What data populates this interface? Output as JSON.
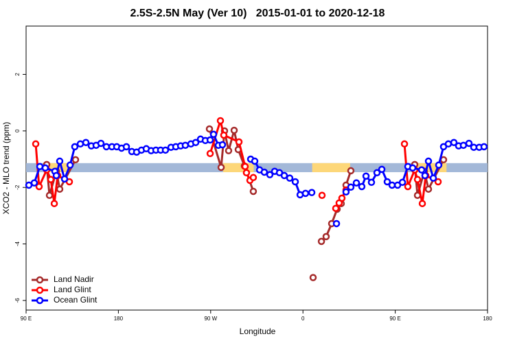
{
  "chart_data": {
    "type": "line",
    "title": "2.5S-2.5N May (Ver 10)   2015-01-01 to 2020-12-18",
    "xlabel": "Longitude",
    "ylabel": "XCO2 - MLO trend (ppm)",
    "xlim": [
      90,
      540
    ],
    "xticks": [
      {
        "value": 90,
        "label": "90 E"
      },
      {
        "value": 180,
        "label": "180"
      },
      {
        "value": 270,
        "label": "90 W"
      },
      {
        "value": 360,
        "label": "0"
      },
      {
        "value": 450,
        "label": "90 E"
      },
      {
        "value": 540,
        "label": "180"
      }
    ],
    "ylim": [
      -6.34,
      3.71
    ],
    "yticks": [
      -6,
      -4,
      -2,
      0,
      2
    ],
    "legend": "bottomleft",
    "bands": {
      "y": [
        -1.46,
        -1.14
      ],
      "color": "#a3b8d8",
      "highlight_color": "#fdd779",
      "highlights": [
        [
          108,
          131.5
        ],
        [
          282,
          312
        ],
        [
          369,
          406
        ],
        [
          466,
          500
        ]
      ]
    },
    "series": [
      {
        "name": "Land Nadir",
        "color": "#a52a2a",
        "x": [
          110.1,
          112.8,
          119.5,
          122.8,
          138.2,
          null,
          268.8,
          280.2,
          283.5,
          287.5,
          292.9,
          296.9,
          302.9,
          311.6,
          null,
          369.9,
          null,
          378.0,
          382.6,
          388.0,
          393.3,
          397.3,
          402.0,
          406.7,
          null,
          469.0,
          471.7,
          478.4,
          482.4,
          497.1
        ],
        "values": [
          -1.19,
          -2.28,
          -1.43,
          -2.06,
          -1.02,
          null,
          0.07,
          -1.29,
          0.0,
          -0.7,
          0.02,
          -0.66,
          -1.24,
          -2.14,
          null,
          -5.19,
          null,
          -3.91,
          -3.74,
          -3.28,
          -2.77,
          -2.57,
          -1.92,
          -1.41,
          null,
          -1.19,
          -2.28,
          -1.43,
          -2.06,
          -1.02
        ]
      },
      {
        "name": "Land Glint",
        "color": "#ff0000",
        "x": [
          99.4,
          102.7,
          110.1,
          114.1,
          117.5,
          120.8,
          132.2,
          null,
          269.5,
          279.5,
          282.8,
          297.6,
          303.6,
          304.9,
          308.3,
          311.6,
          null,
          378.6,
          null,
          392.0,
          395.3,
          398.0,
          402.0,
          null,
          459.0,
          462.3,
          469.0,
          471.7,
          476.4,
          479.8,
          491.8
        ],
        "values": [
          -0.46,
          -1.97,
          -1.38,
          -1.72,
          -2.57,
          -1.58,
          -1.8,
          null,
          -0.8,
          0.36,
          -0.15,
          -0.39,
          -1.26,
          -1.48,
          -1.75,
          -1.65,
          null,
          -2.28,
          null,
          -2.74,
          -2.55,
          -2.38,
          -2.09,
          null,
          -0.46,
          -1.97,
          -1.38,
          -1.72,
          -2.57,
          -1.58,
          -1.8
        ]
      },
      {
        "name": "Ocean Glint",
        "color": "#0000ff",
        "x": [
          92.7,
          98.0,
          103.4,
          108.7,
          118.1,
          119.5,
          122.8,
          127.5,
          132.9,
          137.5,
          142.9,
          148.3,
          153.6,
          158.3,
          163.0,
          168.3,
          173.7,
          178.4,
          183.1,
          187.8,
          193.1,
          197.8,
          202.5,
          207.2,
          211.9,
          216.6,
          221.2,
          225.9,
          231.3,
          236.0,
          240.7,
          245.3,
          250.7,
          255.4,
          260.1,
          264.8,
          269.5,
          272.8,
          277.5,
          281.5,
          null,
          309.0,
          313.0,
          317.7,
          322.3,
          327.7,
          332.4,
          337.1,
          341.8,
          347.1,
          352.5,
          357.2,
          362.5,
          368.6,
          null,
          392.7,
          null,
          402.0,
          406.7,
          412.1,
          417.4,
          421.5,
          426.8,
          432.2,
          436.9,
          442.2,
          446.9,
          452.3,
          457.0,
          462.3,
          467.0,
          475.7,
          479.0,
          482.4,
          487.1,
          492.4,
          497.1,
          501.8,
          507.2,
          511.8,
          516.5,
          521.9,
          526.6,
          531.9,
          536.6
        ],
        "values": [
          -1.92,
          -1.84,
          -1.26,
          -1.31,
          -1.43,
          -1.58,
          -1.07,
          -1.7,
          -1.21,
          -0.56,
          -0.46,
          -0.41,
          -0.53,
          -0.51,
          -0.44,
          -0.56,
          -0.56,
          -0.56,
          -0.61,
          -0.56,
          -0.73,
          -0.75,
          -0.68,
          -0.63,
          -0.7,
          -0.68,
          -0.68,
          -0.68,
          -0.58,
          -0.56,
          -0.53,
          -0.51,
          -0.46,
          -0.41,
          -0.29,
          -0.34,
          -0.32,
          -0.12,
          -0.51,
          -0.49,
          null,
          -1.0,
          -1.07,
          -1.38,
          -1.46,
          -1.55,
          -1.43,
          -1.48,
          -1.58,
          -1.67,
          -1.8,
          -2.26,
          -2.21,
          -2.18,
          null,
          -3.28,
          null,
          -2.16,
          -1.99,
          -1.84,
          -1.97,
          -1.6,
          -1.82,
          -1.48,
          -1.36,
          -1.8,
          -1.92,
          -1.92,
          -1.82,
          -1.26,
          -1.31,
          -1.38,
          -1.58,
          -1.07,
          -1.67,
          -1.21,
          -0.56,
          -0.46,
          -0.41,
          -0.53,
          -0.51,
          -0.44,
          -0.58,
          -0.58,
          -0.56
        ]
      }
    ]
  }
}
